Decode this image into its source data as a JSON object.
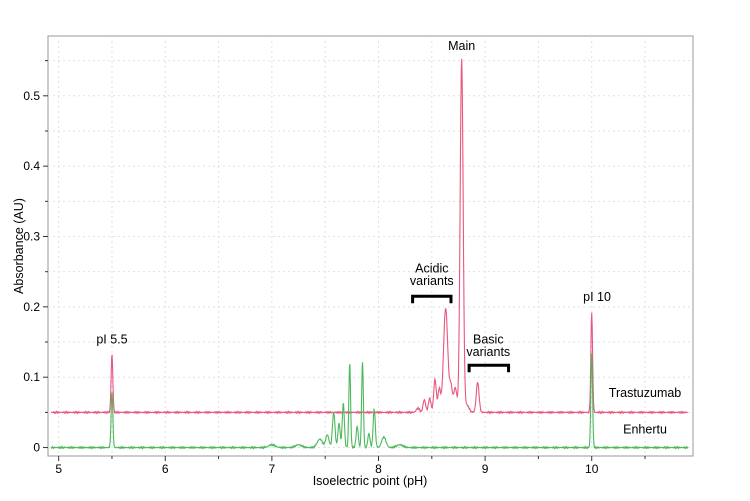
{
  "chart_data": {
    "type": "line",
    "title": "",
    "xlabel": "Isoelectric point (pH)",
    "ylabel": "Absorbance (AU)",
    "xlim": [
      4.9,
      10.95
    ],
    "ylim": [
      -0.012,
      0.585
    ],
    "x_ticks": [
      5,
      6,
      7,
      8,
      9,
      10
    ],
    "y_ticks": [
      0,
      0.1,
      0.2,
      0.3,
      0.4,
      0.5
    ],
    "x_tick_labels": [
      "5",
      "6",
      "7",
      "8",
      "9",
      "10"
    ],
    "y_tick_labels": [
      "0",
      "0.1",
      "0.2",
      "0.3",
      "0.4",
      "0.5"
    ],
    "grid": true,
    "legend": "none",
    "series": [
      {
        "name": "Trastuzumab",
        "color": "#e8577e",
        "baseline": 0.05,
        "label_x": 10.5,
        "label_y": 0.072,
        "peaks": [
          [
            5.5,
            0.083,
            0.008
          ],
          [
            8.37,
            0.006,
            0.015
          ],
          [
            8.43,
            0.018,
            0.012
          ],
          [
            8.48,
            0.02,
            0.012
          ],
          [
            8.53,
            0.047,
            0.012
          ],
          [
            8.57,
            0.033,
            0.012
          ],
          [
            8.63,
            0.148,
            0.02
          ],
          [
            8.68,
            0.035,
            0.013
          ],
          [
            8.72,
            0.035,
            0.015
          ],
          [
            8.78,
            0.502,
            0.014
          ],
          [
            8.83,
            0.01,
            0.02
          ],
          [
            8.93,
            0.043,
            0.013
          ],
          [
            10.0,
            0.143,
            0.008
          ]
        ]
      },
      {
        "name": "Enhertu",
        "color": "#4db85c",
        "baseline": 0.0,
        "label_x": 10.5,
        "label_y": 0.02,
        "peaks": [
          [
            5.5,
            0.08,
            0.008
          ],
          [
            7.0,
            0.004,
            0.03
          ],
          [
            7.25,
            0.004,
            0.03
          ],
          [
            7.45,
            0.012,
            0.025
          ],
          [
            7.52,
            0.018,
            0.015
          ],
          [
            7.58,
            0.05,
            0.012
          ],
          [
            7.63,
            0.035,
            0.01
          ],
          [
            7.67,
            0.063,
            0.01
          ],
          [
            7.73,
            0.121,
            0.008
          ],
          [
            7.8,
            0.03,
            0.01
          ],
          [
            7.85,
            0.123,
            0.008
          ],
          [
            7.91,
            0.02,
            0.01
          ],
          [
            7.96,
            0.055,
            0.01
          ],
          [
            8.05,
            0.015,
            0.02
          ],
          [
            8.2,
            0.004,
            0.03
          ],
          [
            10.0,
            0.134,
            0.008
          ]
        ]
      }
    ],
    "annotations": [
      {
        "id": "main",
        "text": "Main",
        "x": 8.78,
        "y": 0.565
      },
      {
        "id": "pi55",
        "text": "pI 5.5",
        "x": 5.5,
        "y": 0.148
      },
      {
        "id": "pi10",
        "text": "pI 10",
        "x": 10.05,
        "y": 0.208
      },
      {
        "id": "acidic1",
        "text": "Acidic",
        "x": 8.5,
        "y": 0.249
      },
      {
        "id": "acidic2",
        "text": "variants",
        "x": 8.5,
        "y": 0.231
      },
      {
        "id": "basic1",
        "text": "Basic",
        "x": 9.03,
        "y": 0.148
      },
      {
        "id": "basic2",
        "text": "variants",
        "x": 9.03,
        "y": 0.13
      }
    ],
    "brackets": [
      {
        "id": "acidic-bracket",
        "x0": 8.32,
        "x1": 8.68,
        "y": 0.215
      },
      {
        "id": "basic-bracket",
        "x0": 8.85,
        "x1": 9.22,
        "y": 0.117
      }
    ]
  }
}
